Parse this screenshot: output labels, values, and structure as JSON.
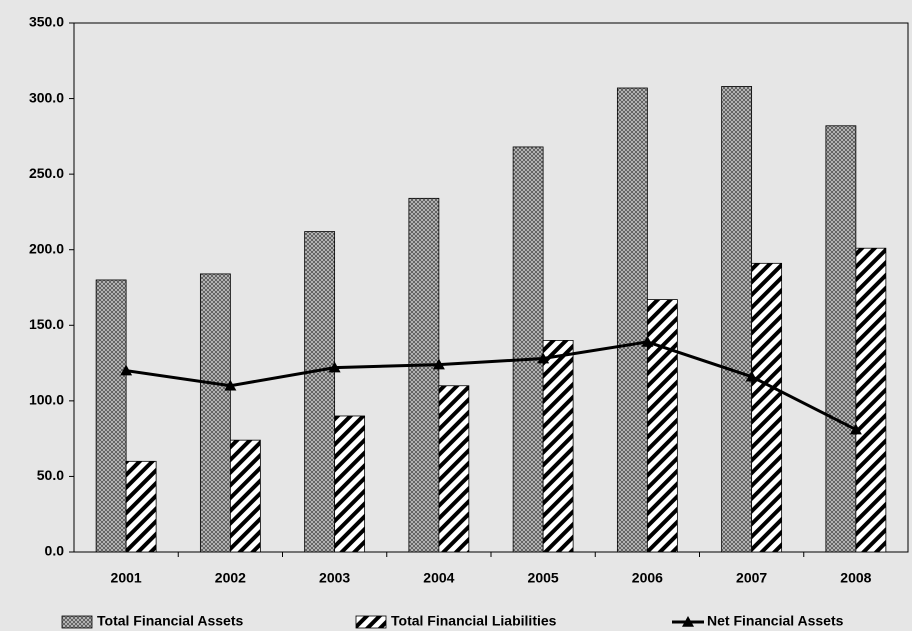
{
  "chart_data": {
    "type": "bar",
    "categories": [
      "2001",
      "2002",
      "2003",
      "2004",
      "2005",
      "2006",
      "2007",
      "2008"
    ],
    "series": [
      {
        "name": "Total Financial Assets",
        "type": "bar",
        "color": "#808080",
        "pattern": "crosshatch",
        "values": [
          180,
          184,
          212,
          234,
          268,
          307,
          308,
          282
        ]
      },
      {
        "name": "Total Financial Liabilities",
        "type": "bar",
        "color": "#000000",
        "pattern": "diagonal",
        "values": [
          60,
          74,
          90,
          110,
          140,
          167,
          191,
          201
        ]
      },
      {
        "name": "Net Financial Assets",
        "type": "line",
        "color": "#000000",
        "marker": "triangle",
        "values": [
          120,
          110,
          122,
          124,
          128,
          139,
          116,
          81
        ]
      }
    ],
    "ylim": [
      0,
      350
    ],
    "yticks": [
      {
        "value": 0,
        "label": "0.0"
      },
      {
        "value": 50,
        "label": "50.0"
      },
      {
        "value": 100,
        "label": "100.0"
      },
      {
        "value": 150,
        "label": "150.0"
      },
      {
        "value": 200,
        "label": "200.0"
      },
      {
        "value": 250,
        "label": "250.0"
      },
      {
        "value": 300,
        "label": "300.0"
      },
      {
        "value": 350,
        "label": "350.0"
      }
    ],
    "grid": false,
    "legend": "bottom"
  }
}
